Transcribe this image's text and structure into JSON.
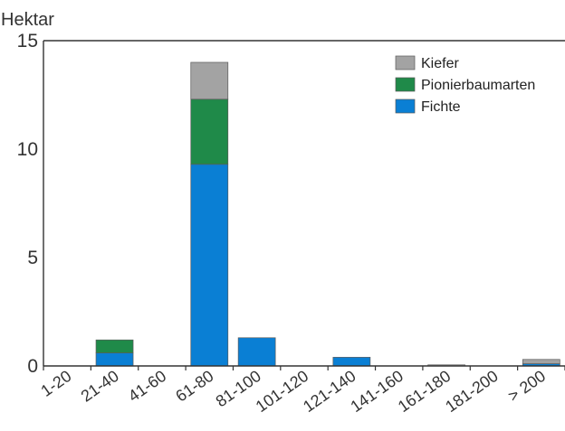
{
  "chart_data": {
    "type": "bar",
    "stacked": true,
    "title": "",
    "ylabel": "Hektar",
    "xlabel": "",
    "categories": [
      "1-20",
      "21-40",
      "41-60",
      "61-80",
      "81-100",
      "101-120",
      "121-140",
      "141-160",
      "161-180",
      "181-200",
      "> 200"
    ],
    "ylim": [
      0,
      15
    ],
    "yticks": [
      0,
      5,
      10,
      15
    ],
    "grid": false,
    "legend_position": "top-right",
    "series": [
      {
        "name": "Fichte",
        "color": "#0a7fd4",
        "values": [
          0,
          0.6,
          0,
          9.3,
          1.3,
          0,
          0.4,
          0,
          0,
          0,
          0.1
        ]
      },
      {
        "name": "Pionierbaumarten",
        "color": "#1f8a49",
        "values": [
          0,
          0.6,
          0,
          3.0,
          0,
          0,
          0,
          0,
          0,
          0,
          0
        ]
      },
      {
        "name": "Kiefer",
        "color": "#a3a3a3",
        "values": [
          0,
          0,
          0,
          1.7,
          0,
          0,
          0,
          0,
          0.05,
          0,
          0.2
        ]
      }
    ],
    "legend_order": [
      "Kiefer",
      "Pionierbaumarten",
      "Fichte"
    ]
  }
}
